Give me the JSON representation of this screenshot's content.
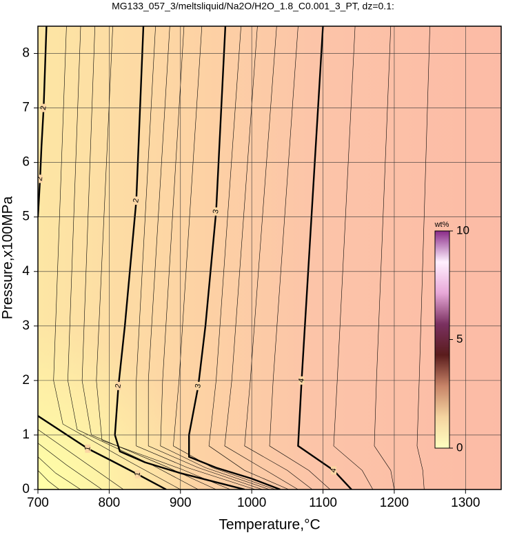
{
  "chart_data": {
    "type": "contour",
    "title": "MG133_057_3/meltsliquid/Na2O/H2O_1.8_C0.001_3_PT, dz=0.1:",
    "xlabel": "Temperature,°C",
    "ylabel": "Pressure,x100MPa",
    "xlim": [
      700,
      1350
    ],
    "ylim": [
      0,
      8.5
    ],
    "xticks": [
      700,
      800,
      900,
      1000,
      1100,
      1200,
      1300
    ],
    "yticks": [
      0,
      1,
      2,
      3,
      4,
      5,
      6,
      7,
      8
    ],
    "grid": true,
    "contours": [
      {
        "level": 1,
        "x": [
          700,
          770,
          800,
          840,
          880
        ],
        "y": [
          1.35,
          0.75,
          0.55,
          0.28,
          0
        ]
      },
      {
        "level": 2,
        "x": [
          712,
          708,
          705,
          703,
          700
        ],
        "y": [
          8.5,
          7,
          6.3,
          5.7,
          5
        ]
      },
      {
        "level": 2,
        "x": [
          848,
          838,
          822,
          813,
          808,
          815,
          850,
          900,
          960,
          990
        ],
        "y": [
          8.5,
          5.3,
          3,
          1.9,
          1,
          0.7,
          0.5,
          0.3,
          0.1,
          0
        ]
      },
      {
        "level": 3,
        "x": [
          963,
          950,
          935,
          925,
          912,
          912,
          950,
          1000,
          1040
        ],
        "y": [
          8.5,
          5.1,
          3,
          1.9,
          1,
          0.6,
          0.4,
          0.2,
          0
        ]
      },
      {
        "level": 0.8,
        "x": [
          700,
          760,
          820
        ],
        "y": [
          1.1,
          0.55,
          0
        ]
      },
      {
        "level": 0.6,
        "x": [
          700,
          740,
          790
        ],
        "y": [
          0.85,
          0.45,
          0
        ]
      },
      {
        "level": 0.4,
        "x": [
          700,
          725,
          760
        ],
        "y": [
          0.6,
          0.3,
          0
        ]
      },
      {
        "level": 0.2,
        "x": [
          700,
          715,
          730
        ],
        "y": [
          0.35,
          0.15,
          0
        ]
      },
      {
        "level": 1.2,
        "x": [
          740,
          722,
          735,
          830,
          900
        ],
        "y": [
          8.5,
          2,
          1.2,
          0.5,
          0
        ]
      },
      {
        "level": 1.4,
        "x": [
          760,
          742,
          755,
          860,
          925
        ],
        "y": [
          8.5,
          2,
          1.1,
          0.45,
          0
        ]
      },
      {
        "level": 1.6,
        "x": [
          780,
          762,
          775,
          880,
          950
        ],
        "y": [
          8.5,
          2,
          1,
          0.42,
          0
        ]
      },
      {
        "level": 1.8,
        "x": [
          805,
          782,
          790,
          900,
          970
        ],
        "y": [
          8.5,
          2,
          0.9,
          0.38,
          0
        ]
      },
      {
        "level": 2.2,
        "x": [
          865,
          838,
          838,
          910,
          1005
        ],
        "y": [
          8.5,
          2,
          0.8,
          0.4,
          0
        ]
      },
      {
        "level": 2.4,
        "x": [
          885,
          855,
          855,
          925,
          1015
        ],
        "y": [
          8.5,
          2,
          0.8,
          0.4,
          0
        ]
      },
      {
        "level": 2.6,
        "x": [
          905,
          875,
          872,
          935,
          1025
        ],
        "y": [
          8.5,
          2,
          0.8,
          0.4,
          0
        ]
      },
      {
        "level": 2.8,
        "x": [
          930,
          898,
          890,
          945,
          1033
        ],
        "y": [
          8.5,
          2,
          0.8,
          0.4,
          0
        ]
      },
      {
        "level": 3.2,
        "x": [
          985,
          950,
          940,
          990,
          1052
        ],
        "y": [
          8.5,
          2,
          0.8,
          0.35,
          0
        ]
      },
      {
        "level": 3.4,
        "x": [
          1008,
          972,
          962,
          1020,
          1065
        ],
        "y": [
          8.5,
          2,
          0.8,
          0.35,
          0
        ]
      },
      {
        "level": 3.6,
        "x": [
          1035,
          998,
          990,
          1050,
          1085
        ],
        "y": [
          8.5,
          2,
          0.8,
          0.35,
          0
        ]
      },
      {
        "level": 3.8,
        "x": [
          1065,
          1030,
          1025,
          1080,
          1110
        ],
        "y": [
          8.5,
          2,
          0.8,
          0.35,
          0
        ]
      },
      {
        "level": 4.0,
        "x": [
          1100,
          1070,
          1065,
          1115,
          1140
        ],
        "y": [
          8.5,
          2,
          0.8,
          0.35,
          0
        ]
      },
      {
        "level": 4.2,
        "x": [
          1145,
          1120,
          1115,
          1155,
          1170
        ],
        "y": [
          8.5,
          2,
          0.8,
          0.35,
          0
        ]
      },
      {
        "level": 4.4,
        "x": [
          1195,
          1175,
          1172,
          1195,
          1200
        ],
        "y": [
          8.5,
          2,
          0.8,
          0.35,
          0
        ]
      },
      {
        "level": 4.6,
        "x": [
          1250,
          1235,
          1232,
          1240,
          1242
        ],
        "y": [
          8.5,
          2,
          0.8,
          0.35,
          0
        ]
      }
    ],
    "colorbar": {
      "label": "wt%",
      "lim": [
        0,
        10
      ],
      "ticks": [
        0,
        5,
        10
      ],
      "colors": [
        "#ffffc0",
        "#f4d4a0",
        "#c88468",
        "#5a1c1c",
        "#7a3060",
        "#e8a8d8",
        "#fff0ff",
        "#8a2a88"
      ]
    }
  }
}
